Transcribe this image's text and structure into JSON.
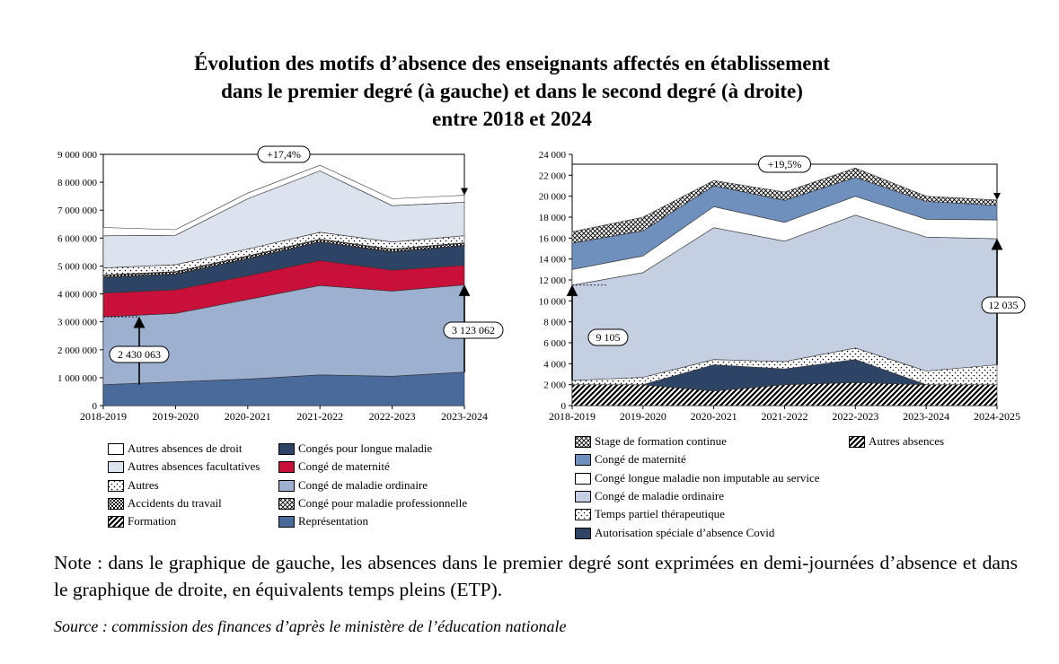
{
  "title": {
    "line1": "Évolution des motifs d’absence des enseignants affectés en établissement",
    "line2": "dans le premier degré (à gauche) et dans le second degré (à droite)",
    "line3": "entre 2018 et 2024"
  },
  "note": "Note : dans le graphique de gauche, les absences dans le premier degré sont exprimées en demi-journées d’absence et dans le graphique de droite, en équivalents temps pleins (ETP).",
  "source": "Source : commission des finances d’après le ministère de l’éducation nationale",
  "chart_data": [
    {
      "type": "area",
      "stacked": true,
      "categories": [
        "2018-2019",
        "2019-2020",
        "2020-2021",
        "2021-2022",
        "2022-2023",
        "2023-2024"
      ],
      "ylim": [
        0,
        9000000
      ],
      "yticks": [
        0,
        1000000,
        2000000,
        3000000,
        4000000,
        5000000,
        6000000,
        7000000,
        8000000,
        9000000
      ],
      "ytick_labels": [
        "0",
        "1 000 000",
        "2 000 000",
        "3 000 000",
        "4 000 000",
        "5 000 000",
        "6 000 000",
        "7 000 000",
        "8 000 000",
        "9 000 000"
      ],
      "series": [
        {
          "name": "Représentation",
          "color": "#4a6a9c",
          "pattern": "solid",
          "values": [
            750000,
            850000,
            950000,
            1100000,
            1050000,
            1200000
          ]
        },
        {
          "name": "Congé de maladie ordinaire",
          "color": "#9db0cf",
          "pattern": "solid",
          "values": [
            2430063,
            2450000,
            2850000,
            3200000,
            3050000,
            3123062
          ]
        },
        {
          "name": "Congé de maternité",
          "color": "#c8103a",
          "pattern": "solid",
          "values": [
            850000,
            850000,
            850000,
            900000,
            750000,
            700000
          ]
        },
        {
          "name": "Congés pour longue maladie",
          "color": "#2e4466",
          "pattern": "solid",
          "values": [
            550000,
            550000,
            600000,
            650000,
            650000,
            700000
          ]
        },
        {
          "name": "Formation",
          "color": "#000000",
          "pattern": "diag",
          "values": [
            20000,
            20000,
            20000,
            20000,
            20000,
            20000
          ]
        },
        {
          "name": "Accidents du travail",
          "color": "#000000",
          "pattern": "checker",
          "values": [
            60000,
            60000,
            70000,
            70000,
            70000,
            70000
          ]
        },
        {
          "name": "Congé pour maladie professionnelle",
          "color": "#000000",
          "pattern": "crosshatch",
          "values": [
            20000,
            20000,
            20000,
            20000,
            20000,
            20000
          ]
        },
        {
          "name": "Autres",
          "color": "#000000",
          "pattern": "dots",
          "values": [
            250000,
            250000,
            250000,
            250000,
            250000,
            250000
          ]
        },
        {
          "name": "Autres absences facultatives",
          "color": "#dce3ef",
          "pattern": "solid",
          "values": [
            1150000,
            1050000,
            1800000,
            2200000,
            1300000,
            1200000
          ]
        },
        {
          "name": "Autres absences de droit",
          "color": "#ffffff",
          "pattern": "solid",
          "values": [
            300000,
            200000,
            200000,
            200000,
            250000,
            250000
          ]
        }
      ],
      "annotations": [
        {
          "text": "+17,4%",
          "from": "2018-2019",
          "to": "2023-2024"
        },
        {
          "text": "2 430 063",
          "category": "2018-2019"
        },
        {
          "text": "3 123 062",
          "category": "2023-2024"
        }
      ]
    },
    {
      "type": "area",
      "stacked": true,
      "categories": [
        "2018-2019",
        "2019-2020",
        "2020-2021",
        "2021-2022",
        "2022-2023",
        "2023-2024",
        "2024-2025"
      ],
      "ylim": [
        0,
        24000
      ],
      "yticks": [
        0,
        2000,
        4000,
        6000,
        8000,
        10000,
        12000,
        14000,
        16000,
        18000,
        20000,
        22000,
        24000
      ],
      "ytick_labels": [
        "0",
        "2 000",
        "4 000",
        "6 000",
        "8 000",
        "10 000",
        "12 000",
        "14 000",
        "16 000",
        "18 000",
        "20 000",
        "22 000",
        "24 000"
      ],
      "series": [
        {
          "name": "Autres absences",
          "color": "#000000",
          "pattern": "diag",
          "values": [
            2000,
            2000,
            1400,
            2000,
            2200,
            2000,
            2000
          ]
        },
        {
          "name": "Autorisation spéciale d’absence Covid",
          "color": "#2e4466",
          "pattern": "solid",
          "values": [
            0,
            0,
            2500,
            1500,
            2200,
            0,
            0
          ]
        },
        {
          "name": "Temps partiel thérapeutique",
          "color": "#000000",
          "pattern": "dots",
          "values": [
            400,
            700,
            500,
            700,
            1100,
            1300,
            1900
          ]
        },
        {
          "name": "Congé de maladie ordinaire",
          "color": "#c5cfe2",
          "pattern": "solid",
          "values": [
            9105,
            10000,
            12600,
            11500,
            12700,
            12800,
            12035
          ]
        },
        {
          "name": "Congé longue maladie non imputable au service",
          "color": "#ffffff",
          "pattern": "solid",
          "values": [
            1500,
            1600,
            2000,
            1800,
            1800,
            1700,
            1800
          ]
        },
        {
          "name": "Congé de maternité",
          "color": "#6f8fbd",
          "pattern": "solid",
          "values": [
            2500,
            2400,
            2000,
            2100,
            1800,
            1700,
            1400
          ]
        },
        {
          "name": "Stage de formation continue",
          "color": "#000000",
          "pattern": "crosshatch",
          "values": [
            1100,
            1300,
            500,
            800,
            900,
            500,
            500
          ]
        }
      ],
      "annotations": [
        {
          "text": "+19,5%",
          "from": "2018-2019",
          "to": "2024-2025"
        },
        {
          "text": "9 105",
          "category": "2018-2019"
        },
        {
          "text": "12 035",
          "category": "2024-2025"
        }
      ]
    }
  ],
  "legend_left": [
    {
      "label": "Autres absences de droit",
      "series": "Autres absences de droit"
    },
    {
      "label": "Congés pour longue maladie",
      "series": "Congés pour longue maladie"
    },
    {
      "label": "Autres absences facultatives",
      "series": "Autres absences facultatives"
    },
    {
      "label": "Congé de maternité",
      "series": "Congé de maternité"
    },
    {
      "label": "Autres",
      "series": "Autres"
    },
    {
      "label": "Congé de maladie ordinaire",
      "series": "Congé de maladie ordinaire"
    },
    {
      "label": "Accidents du travail",
      "series": "Accidents du travail"
    },
    {
      "label": "Congé pour maladie professionnelle",
      "series": "Congé pour maladie professionnelle"
    },
    {
      "label": "Formation",
      "series": "Formation"
    },
    {
      "label": "Représentation",
      "series": "Représentation"
    }
  ],
  "legend_right": [
    {
      "label": "Stage de formation continue",
      "series": "Stage de formation continue"
    },
    {
      "label": "Autres absences",
      "series": "Autres absences"
    },
    {
      "label": "Congé de maternité",
      "series": "Congé de maternité"
    },
    {
      "label": "Congé longue maladie non imputable au service",
      "series": "Congé longue maladie non imputable au service"
    },
    {
      "label": "Congé de maladie ordinaire",
      "series": "Congé de maladie ordinaire"
    },
    {
      "label": "Temps partiel thérapeutique",
      "series": "Temps partiel thérapeutique"
    },
    {
      "label": "Autorisation spéciale d’absence Covid",
      "series": "Autorisation spéciale d’absence Covid"
    }
  ]
}
